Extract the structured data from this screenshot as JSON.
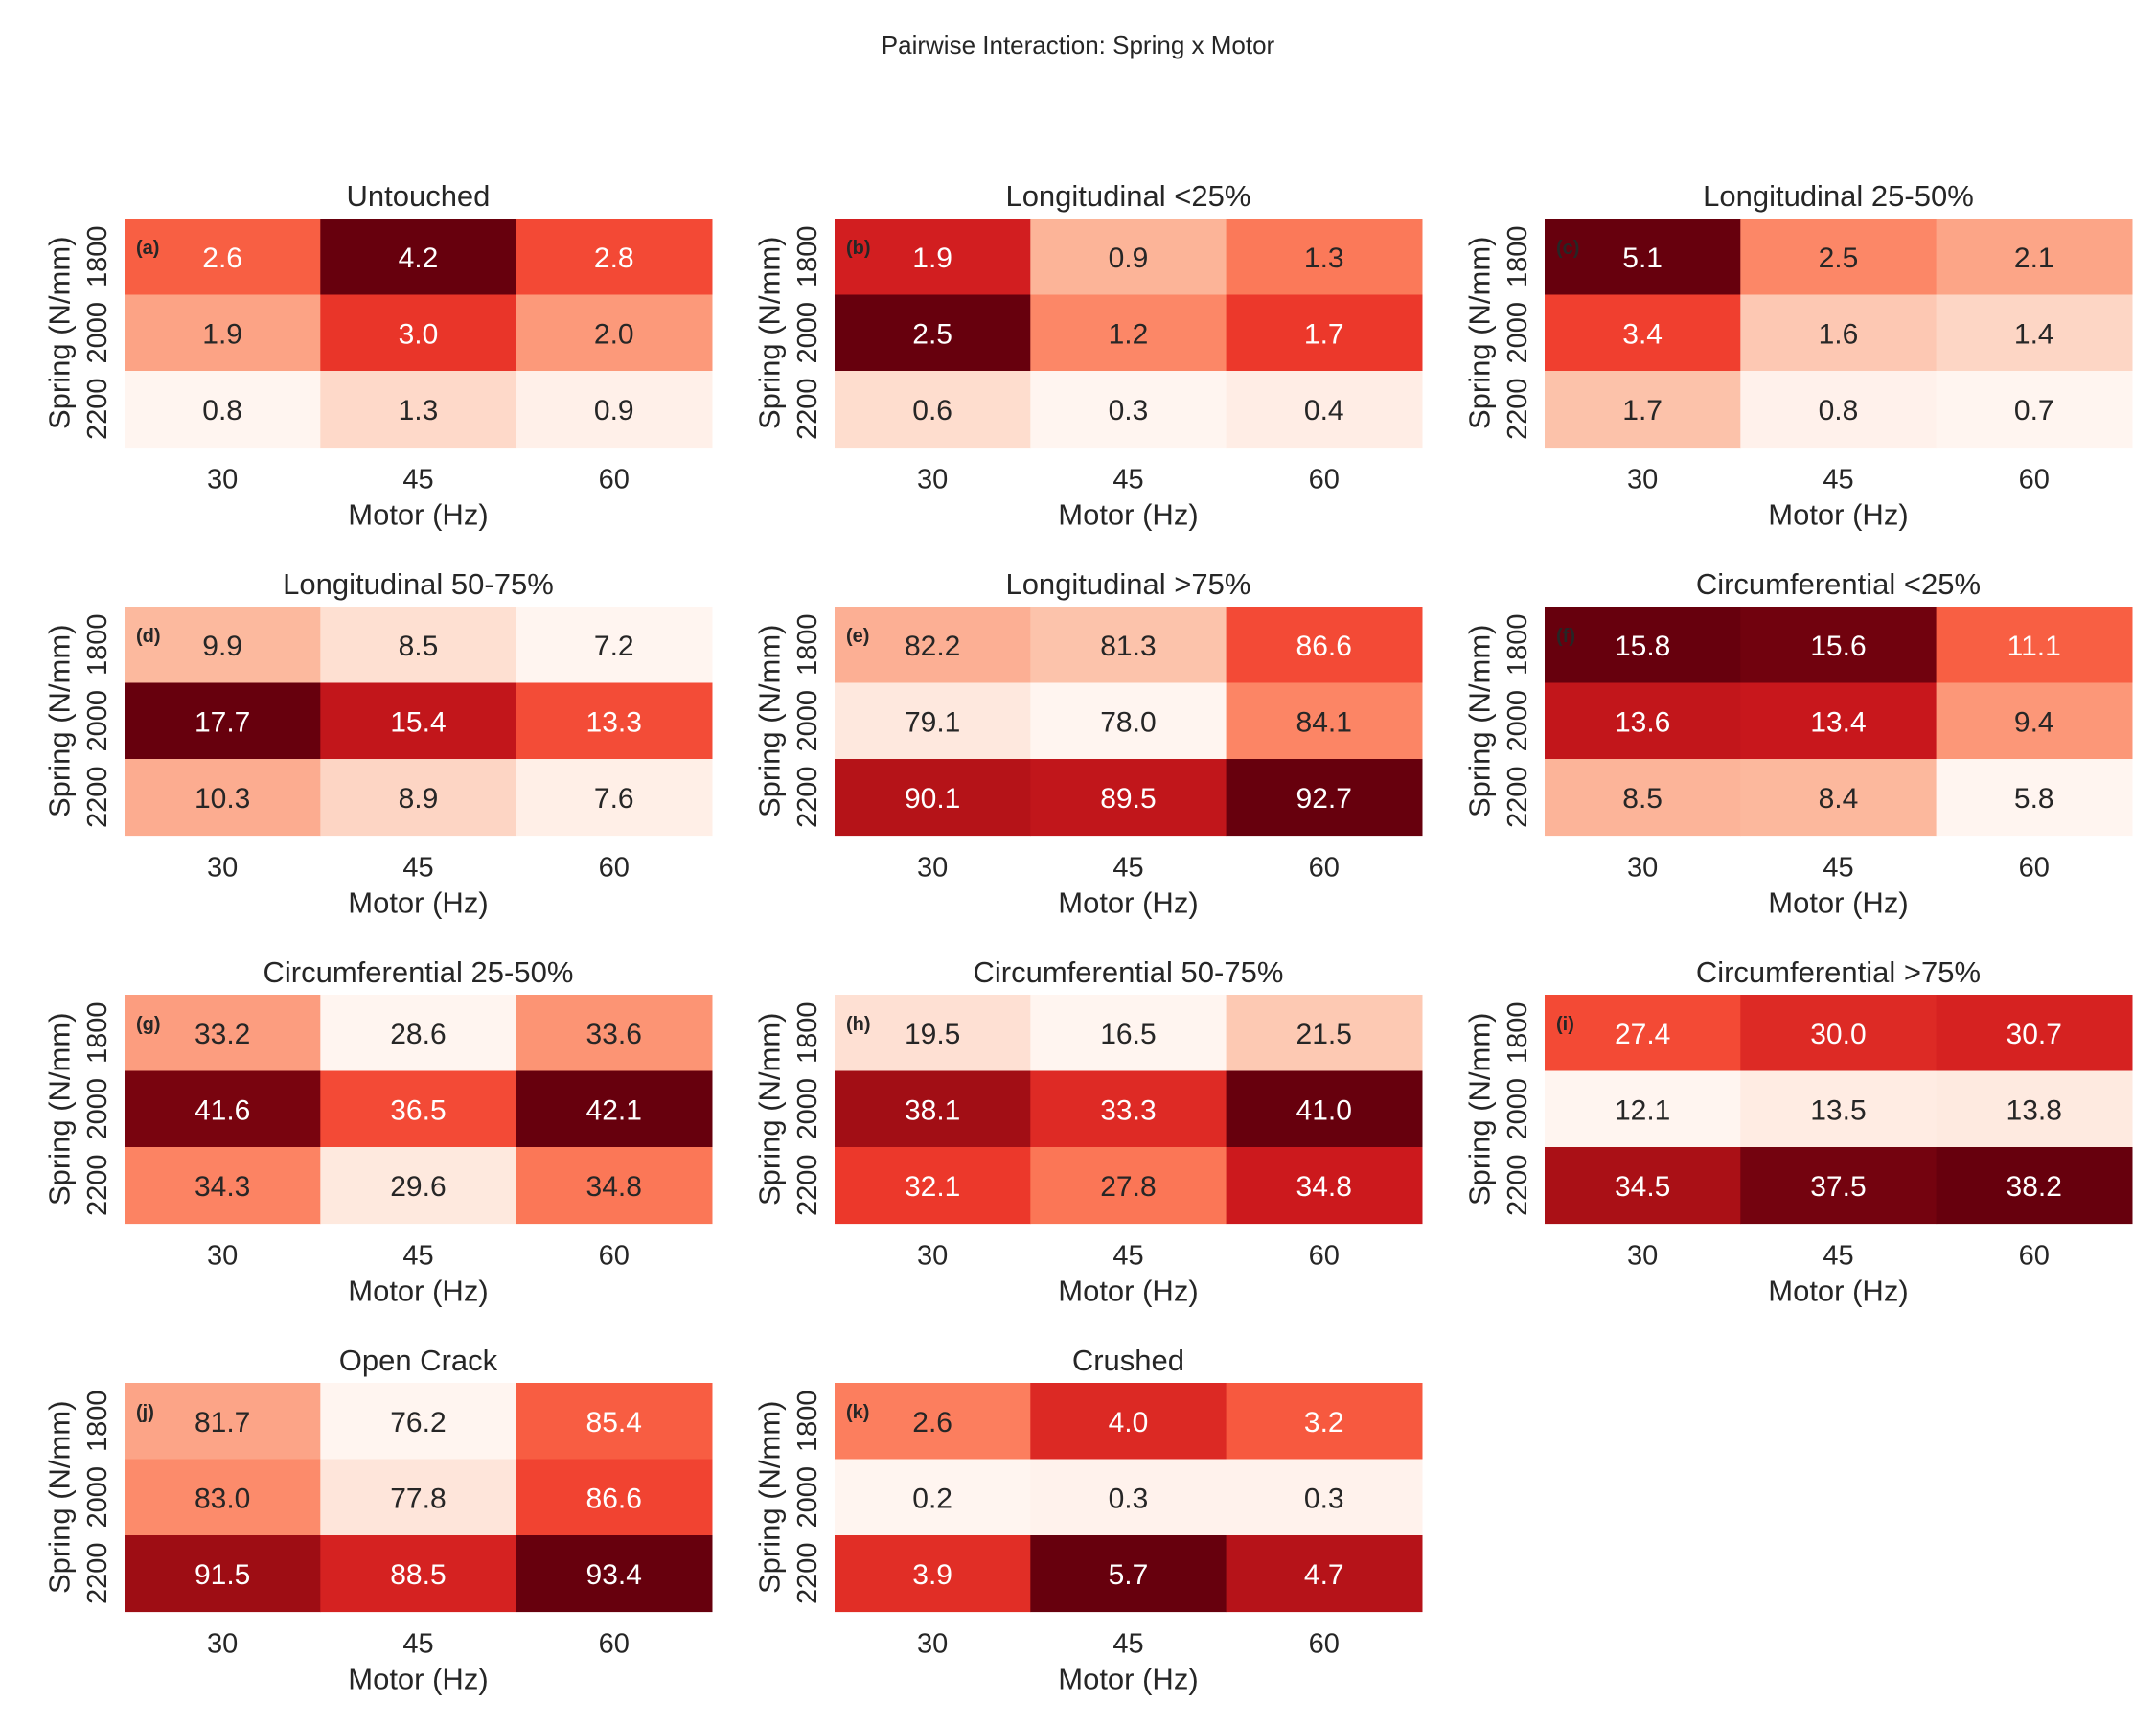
{
  "figure_title": "Pairwise Interaction: Spring x Motor",
  "colormap": "Reds",
  "chart_data": [
    {
      "type": "heatmap",
      "panel_label": "(a)",
      "title": "Untouched",
      "xlabel": "Motor (Hz)",
      "ylabel": "Spring (N/mm)",
      "x": [
        "30",
        "45",
        "60"
      ],
      "y": [
        "1800",
        "2000",
        "2200"
      ],
      "values": [
        [
          2.6,
          4.2,
          2.8
        ],
        [
          1.9,
          3.0,
          2.0
        ],
        [
          0.8,
          1.3,
          0.9
        ]
      ]
    },
    {
      "type": "heatmap",
      "panel_label": "(b)",
      "title": "Longitudinal <25%",
      "xlabel": "Motor (Hz)",
      "ylabel": "Spring (N/mm)",
      "x": [
        "30",
        "45",
        "60"
      ],
      "y": [
        "1800",
        "2000",
        "2200"
      ],
      "values": [
        [
          1.9,
          0.9,
          1.3
        ],
        [
          2.5,
          1.2,
          1.7
        ],
        [
          0.6,
          0.3,
          0.4
        ]
      ]
    },
    {
      "type": "heatmap",
      "panel_label": "(c)",
      "title": "Longitudinal 25-50%",
      "xlabel": "Motor (Hz)",
      "ylabel": "Spring (N/mm)",
      "x": [
        "30",
        "45",
        "60"
      ],
      "y": [
        "1800",
        "2000",
        "2200"
      ],
      "values": [
        [
          5.1,
          2.5,
          2.1
        ],
        [
          3.4,
          1.6,
          1.4
        ],
        [
          1.7,
          0.8,
          0.7
        ]
      ]
    },
    {
      "type": "heatmap",
      "panel_label": "(d)",
      "title": "Longitudinal 50-75%",
      "xlabel": "Motor (Hz)",
      "ylabel": "Spring (N/mm)",
      "x": [
        "30",
        "45",
        "60"
      ],
      "y": [
        "1800",
        "2000",
        "2200"
      ],
      "values": [
        [
          9.9,
          8.5,
          7.2
        ],
        [
          17.7,
          15.4,
          13.3
        ],
        [
          10.3,
          8.9,
          7.6
        ]
      ]
    },
    {
      "type": "heatmap",
      "panel_label": "(e)",
      "title": "Longitudinal >75%",
      "xlabel": "Motor (Hz)",
      "ylabel": "Spring (N/mm)",
      "x": [
        "30",
        "45",
        "60"
      ],
      "y": [
        "1800",
        "2000",
        "2200"
      ],
      "values": [
        [
          82.2,
          81.3,
          86.6
        ],
        [
          79.1,
          78.0,
          84.1
        ],
        [
          90.1,
          89.5,
          92.7
        ]
      ]
    },
    {
      "type": "heatmap",
      "panel_label": "(f)",
      "title": "Circumferential <25%",
      "xlabel": "Motor (Hz)",
      "ylabel": "Spring (N/mm)",
      "x": [
        "30",
        "45",
        "60"
      ],
      "y": [
        "1800",
        "2000",
        "2200"
      ],
      "values": [
        [
          15.8,
          15.6,
          11.1
        ],
        [
          13.6,
          13.4,
          9.4
        ],
        [
          8.5,
          8.4,
          5.8
        ]
      ]
    },
    {
      "type": "heatmap",
      "panel_label": "(g)",
      "title": "Circumferential 25-50%",
      "xlabel": "Motor (Hz)",
      "ylabel": "Spring (N/mm)",
      "x": [
        "30",
        "45",
        "60"
      ],
      "y": [
        "1800",
        "2000",
        "2200"
      ],
      "values": [
        [
          33.2,
          28.6,
          33.6
        ],
        [
          41.6,
          36.5,
          42.1
        ],
        [
          34.3,
          29.6,
          34.8
        ]
      ]
    },
    {
      "type": "heatmap",
      "panel_label": "(h)",
      "title": "Circumferential 50-75%",
      "xlabel": "Motor (Hz)",
      "ylabel": "Spring (N/mm)",
      "x": [
        "30",
        "45",
        "60"
      ],
      "y": [
        "1800",
        "2000",
        "2200"
      ],
      "values": [
        [
          19.5,
          16.5,
          21.5
        ],
        [
          38.1,
          33.3,
          41.0
        ],
        [
          32.1,
          27.8,
          34.8
        ]
      ]
    },
    {
      "type": "heatmap",
      "panel_label": "(i)",
      "title": "Circumferential >75%",
      "xlabel": "Motor (Hz)",
      "ylabel": "Spring (N/mm)",
      "x": [
        "30",
        "45",
        "60"
      ],
      "y": [
        "1800",
        "2000",
        "2200"
      ],
      "values": [
        [
          27.4,
          30.0,
          30.7
        ],
        [
          12.1,
          13.5,
          13.8
        ],
        [
          34.5,
          37.5,
          38.2
        ]
      ]
    },
    {
      "type": "heatmap",
      "panel_label": "(j)",
      "title": "Open Crack",
      "xlabel": "Motor (Hz)",
      "ylabel": "Spring (N/mm)",
      "x": [
        "30",
        "45",
        "60"
      ],
      "y": [
        "1800",
        "2000",
        "2200"
      ],
      "values": [
        [
          81.7,
          76.2,
          85.4
        ],
        [
          83.0,
          77.8,
          86.6
        ],
        [
          91.5,
          88.5,
          93.4
        ]
      ]
    },
    {
      "type": "heatmap",
      "panel_label": "(k)",
      "title": "Crushed",
      "xlabel": "Motor (Hz)",
      "ylabel": "Spring (N/mm)",
      "x": [
        "30",
        "45",
        "60"
      ],
      "y": [
        "1800",
        "2000",
        "2200"
      ],
      "values": [
        [
          2.6,
          4.0,
          3.2
        ],
        [
          0.2,
          0.3,
          0.3
        ],
        [
          3.9,
          5.7,
          4.7
        ]
      ]
    }
  ]
}
